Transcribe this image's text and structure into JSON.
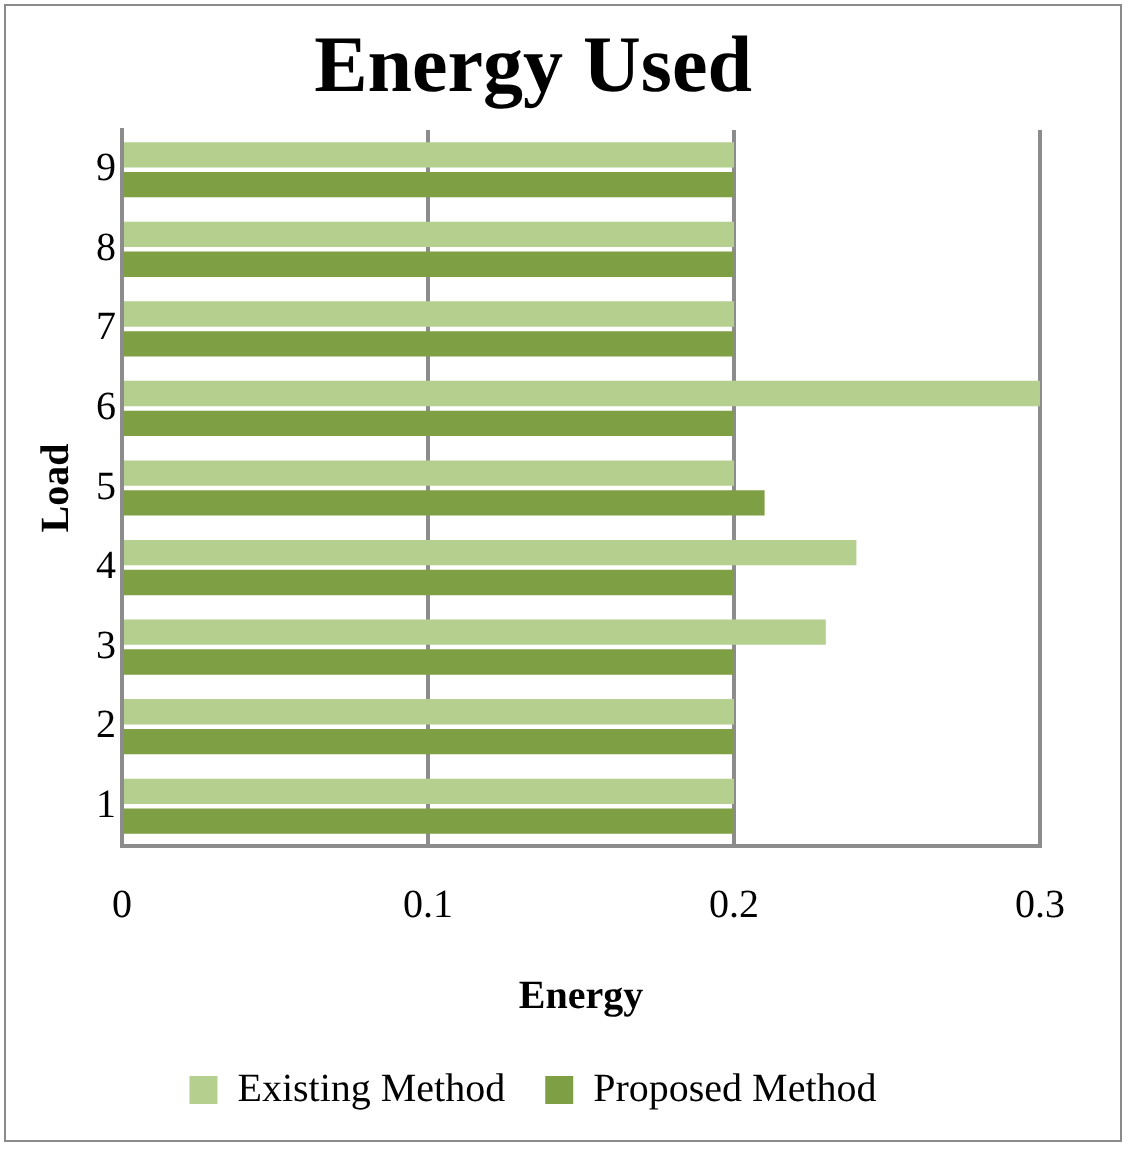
{
  "chart_data": {
    "type": "bar",
    "orientation": "horizontal",
    "title": "Energy Used",
    "xlabel": "Energy",
    "ylabel": "Load",
    "categories": [
      "9",
      "8",
      "7",
      "6",
      "5",
      "4",
      "3",
      "2",
      "1"
    ],
    "series": [
      {
        "name": "Existing Method",
        "color": "#b5cf8f",
        "values": [
          0.2,
          0.2,
          0.2,
          0.3,
          0.2,
          0.24,
          0.23,
          0.2,
          0.2
        ]
      },
      {
        "name": "Proposed Method",
        "color": "#7f9f45",
        "values": [
          0.2,
          0.2,
          0.2,
          0.2,
          0.21,
          0.2,
          0.2,
          0.2,
          0.2
        ]
      }
    ],
    "xlim": [
      0,
      0.3
    ],
    "xticks": [
      0,
      0.1,
      0.2,
      0.3
    ],
    "grid": "x",
    "legend": "bottom"
  }
}
